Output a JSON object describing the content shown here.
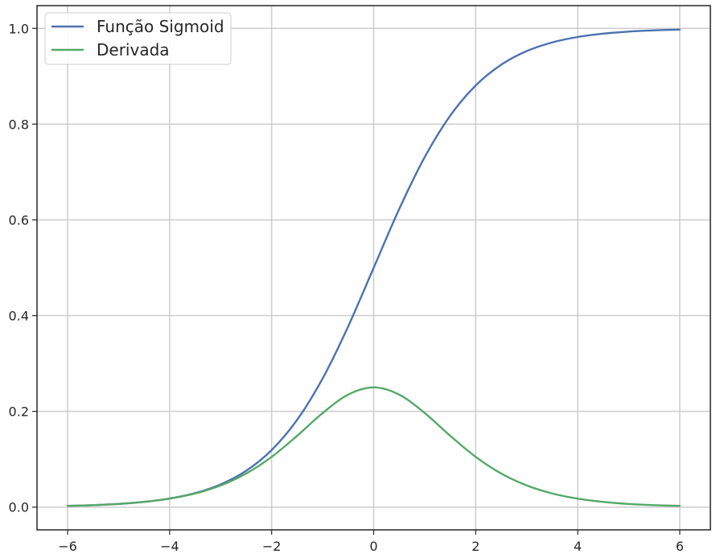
{
  "chart_data": {
    "type": "line",
    "title": "",
    "xlabel": "",
    "ylabel": "",
    "xlim": [
      -6.6,
      6.6
    ],
    "ylim": [
      -0.0475,
      1.0475
    ],
    "grid": true,
    "legend_position": "top-left",
    "x_ticks": [
      -6,
      -4,
      -2,
      0,
      2,
      4,
      6
    ],
    "x_tick_labels": [
      "−6",
      "−4",
      "−2",
      "0",
      "2",
      "4",
      "6"
    ],
    "y_ticks": [
      0.0,
      0.2,
      0.4,
      0.6,
      0.8,
      1.0
    ],
    "y_tick_labels": [
      "0.0",
      "0.2",
      "0.4",
      "0.6",
      "0.8",
      "1.0"
    ],
    "x": [
      -6,
      -5.5,
      -5,
      -4.5,
      -4,
      -3.5,
      -3,
      -2.5,
      -2,
      -1.5,
      -1,
      -0.5,
      0,
      0.5,
      1,
      1.5,
      2,
      2.5,
      3,
      3.5,
      4,
      4.5,
      5,
      5.5,
      6
    ],
    "series": [
      {
        "name": "Função Sigmoid",
        "color": "#4c72b0",
        "values": [
          0.0025,
          0.0041,
          0.0067,
          0.011,
          0.018,
          0.0293,
          0.0474,
          0.0759,
          0.1192,
          0.1824,
          0.2689,
          0.3775,
          0.5,
          0.6225,
          0.7311,
          0.8176,
          0.8808,
          0.9241,
          0.9526,
          0.9707,
          0.982,
          0.989,
          0.9933,
          0.9959,
          0.9975
        ]
      },
      {
        "name": "Derivada",
        "color": "#55a868",
        "values": [
          0.0025,
          0.0041,
          0.0066,
          0.0109,
          0.0177,
          0.0285,
          0.0452,
          0.0701,
          0.105,
          0.1491,
          0.1966,
          0.235,
          0.25,
          0.235,
          0.1966,
          0.1491,
          0.105,
          0.0701,
          0.0452,
          0.0285,
          0.0177,
          0.0109,
          0.0066,
          0.0041,
          0.0025
        ]
      }
    ]
  }
}
